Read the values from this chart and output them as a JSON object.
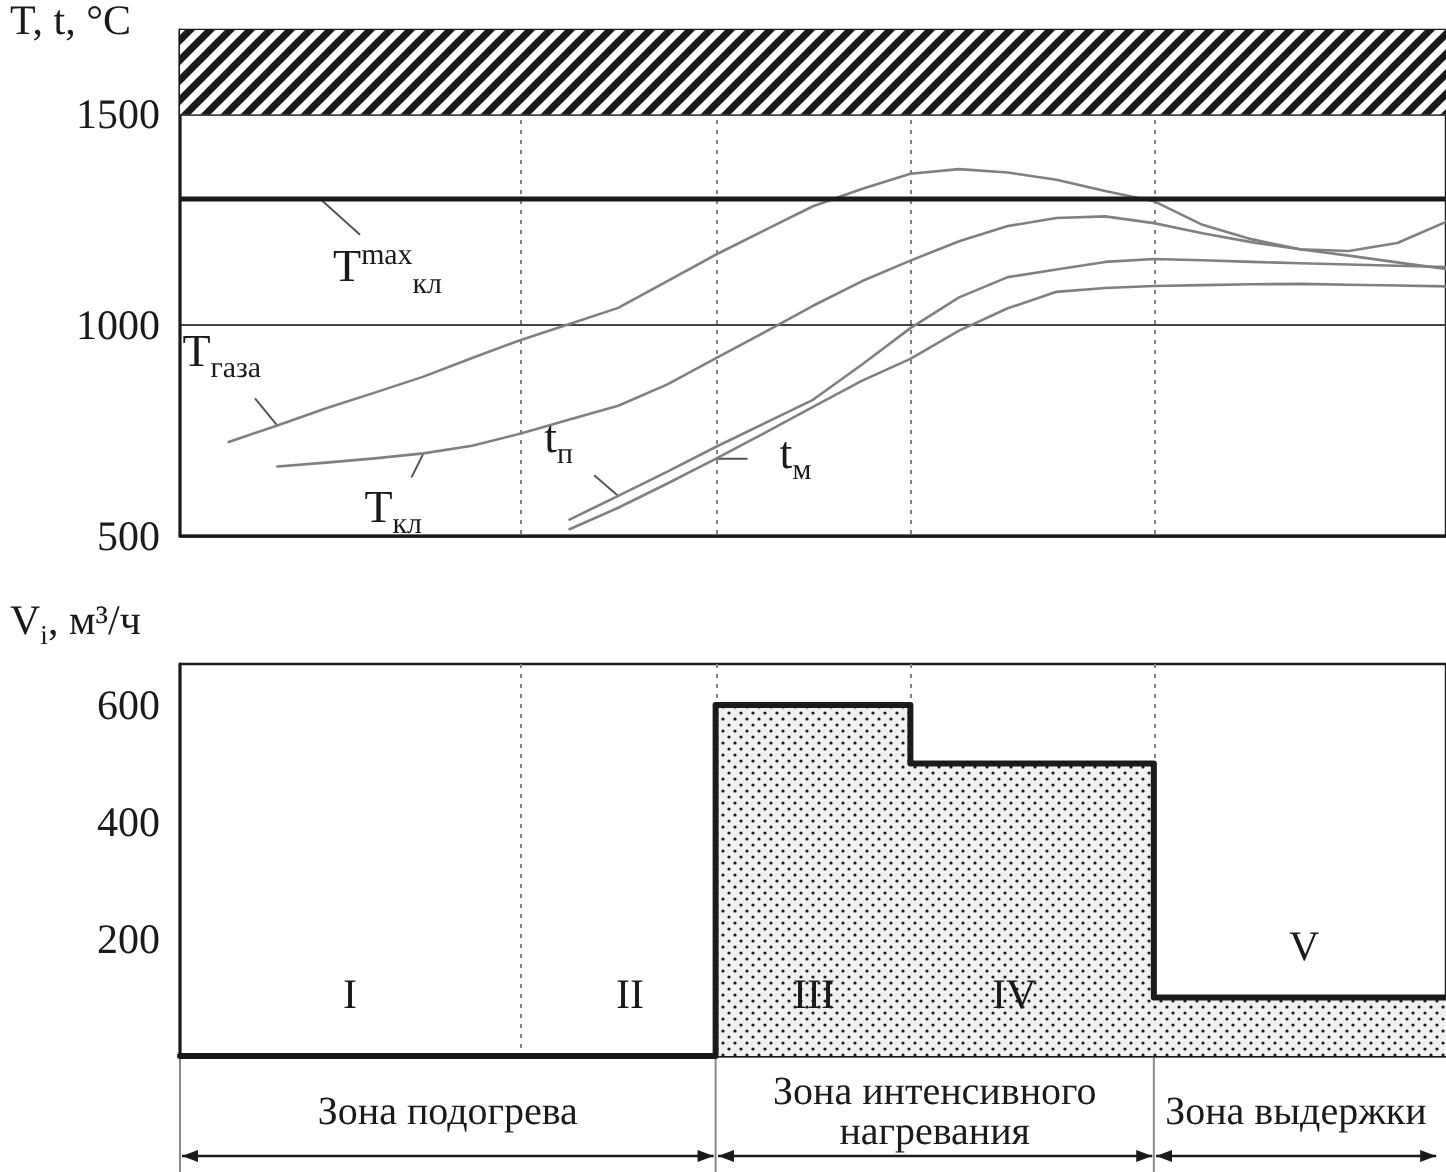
{
  "chart_data": [
    {
      "type": "line",
      "ylabel": "T, t, °C",
      "categories": [
        null,
        null,
        null,
        null,
        null,
        null,
        null,
        null,
        null,
        null,
        null,
        null,
        null,
        null,
        null,
        null,
        null,
        null,
        null,
        null,
        null,
        null,
        null,
        null,
        null,
        null,
        null
      ],
      "ylim": [
        500,
        1700
      ],
      "yticks": [
        500,
        1000,
        1500
      ],
      "tick_labels": "y",
      "grid": true,
      "legend": false,
      "marker": "none",
      "series": [
        {
          "name": "T$_{газа}$",
          "color": "#808080",
          "values": [
            null,
            723,
            762,
            803,
            840,
            878,
            922,
            965,
            1003,
            1041,
            1104,
            1167,
            1225,
            1282,
            1323,
            1359,
            1370,
            1362,
            1345,
            1318,
            1294,
            1238,
            1204,
            1180,
            1176,
            1195,
            1245
          ]
        },
        {
          "name": "T$_{кл}$",
          "color": "#808080",
          "values": [
            null,
            null,
            665,
            674,
            684,
            696,
            714,
            743,
            776,
            809,
            859,
            921,
            983,
            1046,
            1104,
            1153,
            1199,
            1235,
            1254,
            1258,
            1242,
            1218,
            1197,
            1180,
            1165,
            1149,
            1133
          ]
        },
        {
          "name": "t$_{п}$",
          "color": "#808080",
          "values": [
            null,
            null,
            null,
            null,
            null,
            null,
            null,
            null,
            539,
            595,
            652,
            711,
            767,
            823,
            906,
            993,
            1066,
            1114,
            1132,
            1150,
            1157,
            1154,
            1150,
            1147,
            1144,
            1141,
            1138
          ]
        },
        {
          "name": "t$_{м}$",
          "color": "#808080",
          "values": [
            null,
            null,
            null,
            null,
            null,
            null,
            null,
            null,
            516,
            567,
            624,
            683,
            744,
            806,
            868,
            920,
            987,
            1040,
            1079,
            1088,
            1093,
            1095,
            1097,
            1098,
            1096,
            1094,
            1092
          ]
        }
      ],
      "ref_lines": [
        {
          "axis": "y",
          "value": 1300,
          "label": "T$^{max}$$_{кл}$",
          "color": "#1a1a1a"
        }
      ],
      "bands": [
        {
          "axis": "y",
          "from": 1500,
          "to": 1700,
          "color": "#1a1a1a"
        }
      ]
    },
    {
      "type": "step",
      "ylabel": "V$_{i}$, м³/ч",
      "categories": [
        null,
        null,
        null,
        null,
        null,
        null,
        null,
        null,
        null,
        null,
        null,
        null,
        null,
        null,
        null,
        null,
        null,
        null,
        null,
        null,
        null,
        null,
        null,
        null,
        null,
        null,
        null
      ],
      "ylim": [
        0,
        670
      ],
      "yticks": [
        200,
        400,
        600
      ],
      "tick_labels": "y",
      "grid": "x",
      "legend": false,
      "series": [
        {
          "type": "area",
          "color": "#1a1a1a",
          "values": [
            0,
            0,
            0,
            0,
            0,
            0,
            0,
            0,
            0,
            0,
            0,
            600,
            600,
            600,
            600,
            500,
            500,
            500,
            500,
            500,
            100,
            100,
            100,
            100,
            100,
            100,
            100
          ]
        }
      ],
      "annotations": [
        "I",
        "II",
        "III",
        "IV",
        "V",
        "Зона подогрева",
        "Зона интенсивного нагревания",
        "Зона выдержки"
      ]
    }
  ]
}
